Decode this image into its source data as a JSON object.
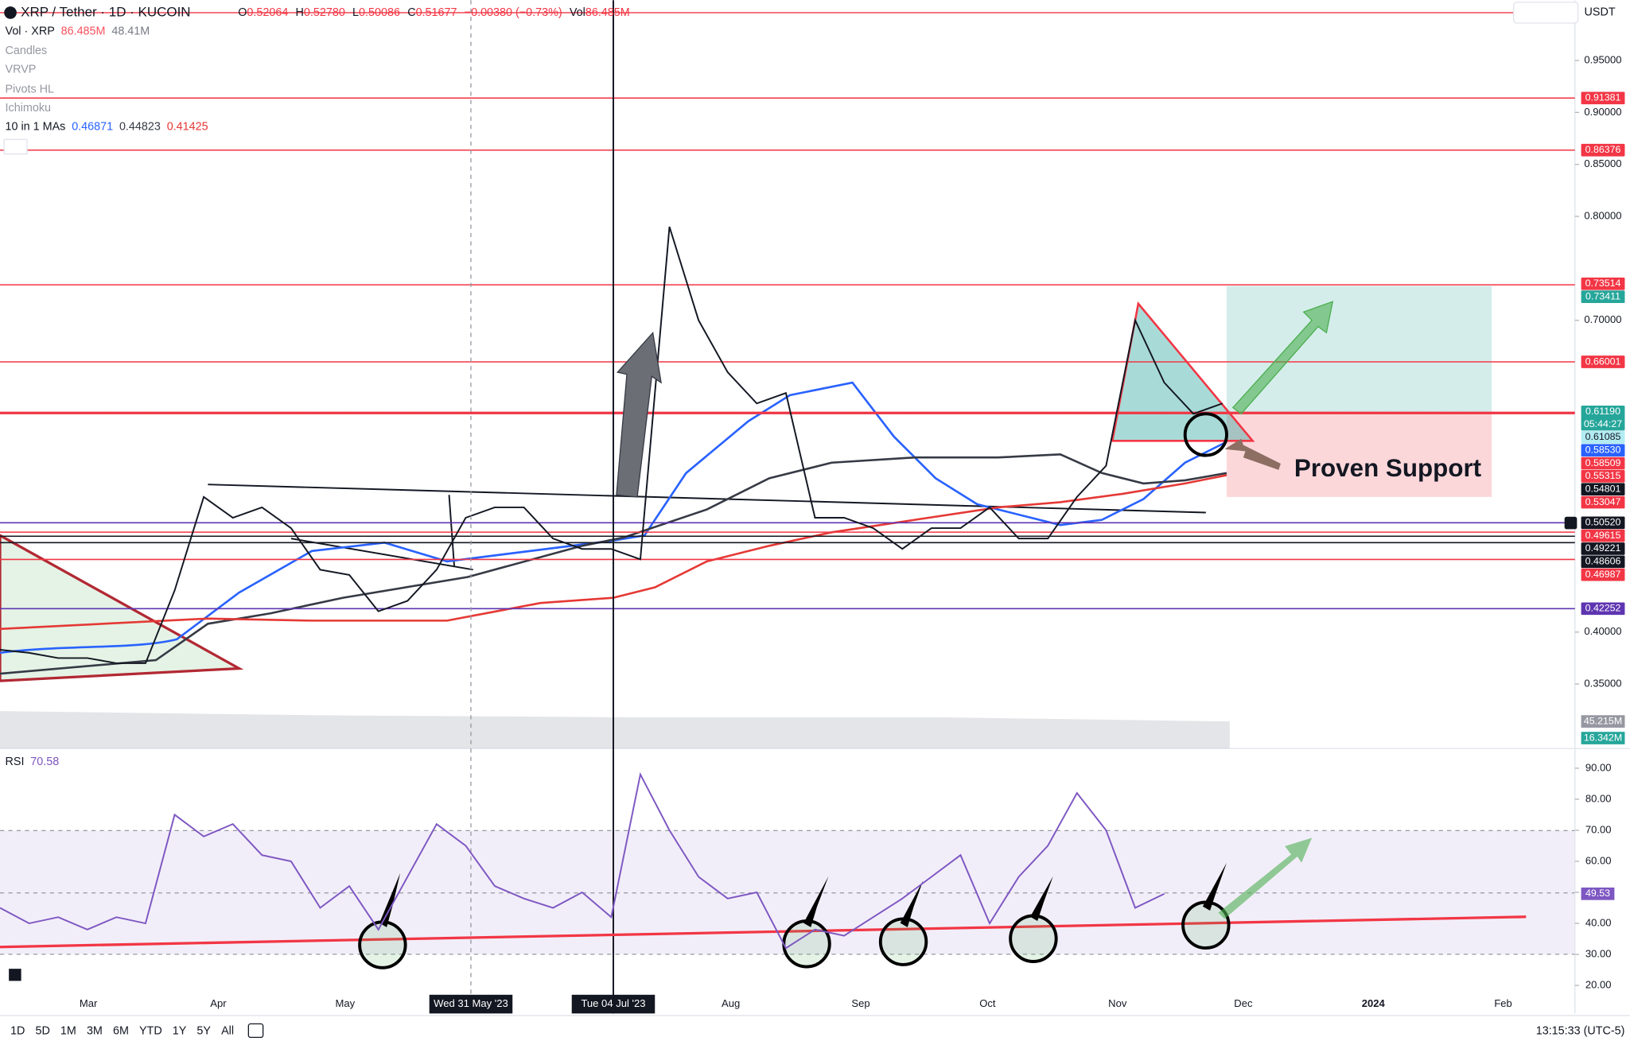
{
  "header": {
    "symbol": "XRP / Tether · 1D · KUCOIN",
    "ohlc": [
      {
        "key": "O",
        "value": "0.52064"
      },
      {
        "key": "H",
        "value": "0.52780"
      },
      {
        "key": "L",
        "value": "0.50086"
      },
      {
        "key": "C",
        "value": "0.51677"
      }
    ],
    "change": "−0.00380 (−0.73%)",
    "volume_key": "Vol",
    "volume": "86.485M",
    "currency": "USDT"
  },
  "indicators": {
    "volume": {
      "name": "Vol · XRP",
      "values": [
        "86.485M",
        "48.41M"
      ]
    },
    "hidden": [
      "Candles",
      "VRVP",
      "Pivots HL",
      "Ichimoku"
    ],
    "mas": {
      "name": "10 in 1 MAs",
      "values": [
        "0.46871",
        "0.44823",
        "0.41425"
      ]
    }
  },
  "chart_data": [
    {
      "type": "line",
      "categories": [
        null,
        null,
        null,
        null,
        null,
        null,
        null,
        null,
        null,
        null,
        null,
        null,
        null,
        null,
        null,
        null,
        null,
        null,
        null,
        null,
        null,
        null,
        null,
        null,
        null,
        null,
        null,
        null,
        null,
        null,
        null,
        null,
        null,
        null,
        null,
        null,
        null,
        null,
        null,
        null,
        null,
        null,
        null
      ],
      "values": [
        0.383,
        0.38,
        0.375,
        0.375,
        0.37,
        0.37,
        0.44,
        0.53,
        0.51,
        0.52,
        0.5,
        0.46,
        0.455,
        0.42,
        0.43,
        0.46,
        0.51,
        0.52,
        0.52,
        0.49,
        0.48,
        0.48,
        0.47,
        0.79,
        0.7,
        0.65,
        0.62,
        0.63,
        0.51,
        0.51,
        0.5,
        0.48,
        0.5,
        0.5,
        0.52,
        0.49,
        0.49,
        0.53,
        0.56,
        0.7,
        0.64,
        0.61,
        0.62
      ],
      "color": "#131722",
      "ylim": [
        0.29,
        1.008
      ],
      "yticks": [
        {
          "value": 0.95,
          "label": "0.95000"
        },
        {
          "value": 0.9,
          "label": "0.90000"
        },
        {
          "value": 0.85,
          "label": "0.85000"
        },
        {
          "value": 0.8,
          "label": "0.80000"
        },
        {
          "value": 0.7,
          "label": "0.70000"
        },
        {
          "value": 0.4,
          "label": "0.40000"
        },
        {
          "value": 0.35,
          "label": "0.35000"
        }
      ],
      "levels": [
        {
          "value": 0.91381,
          "label": "0.91381",
          "color": "#f23645",
          "line": "#f23645"
        },
        {
          "value": 0.86376,
          "label": "0.86376",
          "color": "#f23645",
          "line": "#f23645"
        },
        {
          "value": 0.73514,
          "label": "0.73514",
          "color": "#f23645"
        },
        {
          "value": 0.73411,
          "label": "0.73411",
          "color": "#26a69a",
          "line": "#f23645"
        },
        {
          "value": 0.66001,
          "label": "0.66001",
          "color": "#f23645",
          "line": "#f23645"
        },
        {
          "value": 0.6119,
          "label": "0.61190",
          "color": "#26a69a",
          "time": "05:44:27"
        },
        {
          "value": 0.61085,
          "label": "0.61085",
          "color": "#b2ebf2",
          "line": "#f23645",
          "line_width": 2.5
        },
        {
          "value": 0.5853,
          "label": "0.58530",
          "color": "#2962ff"
        },
        {
          "value": 0.58509,
          "label": "0.58509",
          "color": "#f23645"
        },
        {
          "value": 0.55315,
          "label": "0.55315",
          "color": "#f23645"
        },
        {
          "value": 0.54801,
          "label": "0.54801",
          "color": "#131722"
        },
        {
          "value": 0.53047,
          "label": "0.53047",
          "color": "#f23645"
        },
        {
          "value": 0.5052,
          "label": "0.50520",
          "color": "#131722",
          "line": "#5e35b1"
        },
        {
          "value": 0.49615,
          "label": "0.49615",
          "color": "#f23645",
          "line": "#f23645"
        },
        {
          "value": 0.49221,
          "label": "0.49221",
          "color": "#131722",
          "line": "#131722"
        },
        {
          "value": 0.48606,
          "label": "0.48606",
          "color": "#131722",
          "line": "#131722"
        },
        {
          "value": 0.46987,
          "label": "0.46987",
          "color": "#f23645",
          "line": "#f23645"
        },
        {
          "value": 0.42252,
          "label": "0.42252",
          "color": "#5e35b1",
          "line": "#5e35b1"
        }
      ],
      "volume_labels": [
        {
          "label": "45.215M",
          "color": "#9598a1"
        },
        {
          "label": "16.342M",
          "color": "#26a69a"
        }
      ],
      "annotation": "Proven Support"
    },
    {
      "type": "line",
      "title": "RSI",
      "value_text": "70.58",
      "color": "#7e57c2",
      "categories": [
        null,
        null,
        null,
        null,
        null,
        null,
        null,
        null,
        null,
        null,
        null,
        null,
        null,
        null,
        null,
        null,
        null,
        null,
        null,
        null,
        null,
        null,
        null,
        null,
        null,
        null,
        null,
        null,
        null,
        null,
        null,
        null,
        null,
        null,
        null,
        null,
        null,
        null,
        null,
        null,
        null
      ],
      "values": [
        45,
        40,
        42,
        38,
        42,
        40,
        75,
        68,
        72,
        62,
        60,
        45,
        52,
        38,
        55,
        72,
        65,
        52,
        48,
        45,
        50,
        42,
        88,
        70,
        55,
        48,
        50,
        32,
        38,
        36,
        42,
        48,
        55,
        62,
        40,
        55,
        65,
        82,
        70,
        45,
        49.53
      ],
      "ylim": [
        17.66,
        95.69
      ],
      "yticks": [
        {
          "value": 90,
          "label": "90.00"
        },
        {
          "value": 80,
          "label": "80.00"
        },
        {
          "value": 70,
          "label": "70.00"
        },
        {
          "value": 60,
          "label": "60.00"
        },
        {
          "value": 50,
          "label": "50.00"
        },
        {
          "value": 40,
          "label": "40.00"
        },
        {
          "value": 30,
          "label": "30.00"
        },
        {
          "value": 20,
          "label": "20.00"
        }
      ]
    }
  ],
  "time_axis": [
    "Mar",
    "Apr",
    "May",
    "Wed 31 May '23",
    "Tue 04 Jul '23",
    "Aug",
    "Sep",
    "Oct",
    "Nov",
    "Dec",
    "2024",
    "Feb"
  ],
  "toolbar": {
    "ranges": [
      "1D",
      "5D",
      "1M",
      "3M",
      "6M",
      "YTD",
      "1Y",
      "5Y",
      "All"
    ],
    "clock": "13:15:33 (UTC-5)"
  }
}
